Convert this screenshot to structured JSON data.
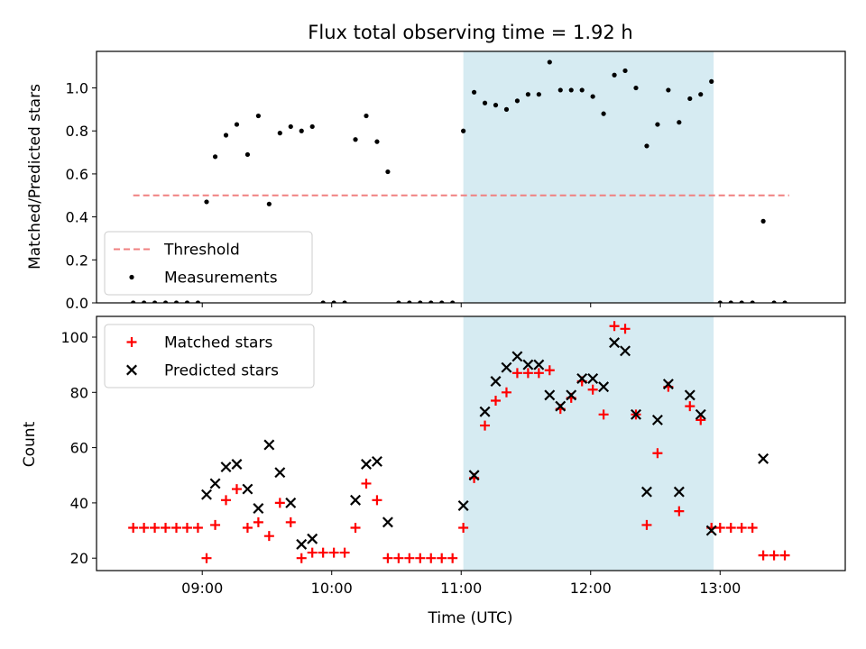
{
  "chart_data": [
    {
      "type": "scatter",
      "title": "Flux total observing time = 1.92 h",
      "xlabel": "",
      "ylabel": "Matched/Predicted stars",
      "xlim": [
        "08:11",
        "13:58"
      ],
      "ylim": [
        0,
        1.17
      ],
      "yticks": [
        0.0,
        0.2,
        0.4,
        0.6,
        0.8,
        1.0
      ],
      "ytick_labels": [
        "0.0",
        "0.2",
        "0.4",
        "0.6",
        "0.8",
        "1.0"
      ],
      "xticks": [
        "09:00",
        "10:00",
        "11:00",
        "12:00",
        "13:00"
      ],
      "grid": false,
      "legend": "lower-left",
      "shaded_span": {
        "start": "11:01",
        "end": "12:57",
        "color": "#add8e6"
      },
      "threshold": {
        "name": "Threshold",
        "y": 0.5,
        "x_start": "08:28",
        "x_end": "13:32",
        "color": "#f08080"
      },
      "series": [
        {
          "name": "Measurements",
          "color": "#000000",
          "marker": "dot",
          "points": [
            [
              "08:28",
              0
            ],
            [
              "08:33",
              0
            ],
            [
              "08:38",
              0
            ],
            [
              "08:43",
              0
            ],
            [
              "08:48",
              0
            ],
            [
              "08:53",
              0
            ],
            [
              "08:58",
              0
            ],
            [
              "09:02",
              0.47
            ],
            [
              "09:06",
              0.68
            ],
            [
              "09:11",
              0.78
            ],
            [
              "09:16",
              0.83
            ],
            [
              "09:21",
              0.69
            ],
            [
              "09:26",
              0.87
            ],
            [
              "09:31",
              0.46
            ],
            [
              "09:36",
              0.79
            ],
            [
              "09:41",
              0.82
            ],
            [
              "09:46",
              0.8
            ],
            [
              "09:51",
              0.82
            ],
            [
              "09:56",
              0
            ],
            [
              "10:01",
              0
            ],
            [
              "10:06",
              0
            ],
            [
              "10:11",
              0.76
            ],
            [
              "10:16",
              0.87
            ],
            [
              "10:21",
              0.75
            ],
            [
              "10:26",
              0.61
            ],
            [
              "10:31",
              0
            ],
            [
              "10:36",
              0
            ],
            [
              "10:41",
              0
            ],
            [
              "10:46",
              0
            ],
            [
              "10:51",
              0
            ],
            [
              "10:56",
              0
            ],
            [
              "11:01",
              0.8
            ],
            [
              "11:06",
              0.98
            ],
            [
              "11:11",
              0.93
            ],
            [
              "11:16",
              0.92
            ],
            [
              "11:21",
              0.9
            ],
            [
              "11:26",
              0.94
            ],
            [
              "11:31",
              0.97
            ],
            [
              "11:36",
              0.97
            ],
            [
              "11:41",
              1.12
            ],
            [
              "11:46",
              0.99
            ],
            [
              "11:51",
              0.99
            ],
            [
              "11:56",
              0.99
            ],
            [
              "12:01",
              0.96
            ],
            [
              "12:06",
              0.88
            ],
            [
              "12:11",
              1.06
            ],
            [
              "12:16",
              1.08
            ],
            [
              "12:21",
              1.0
            ],
            [
              "12:26",
              0.73
            ],
            [
              "12:31",
              0.83
            ],
            [
              "12:36",
              0.99
            ],
            [
              "12:41",
              0.84
            ],
            [
              "12:46",
              0.95
            ],
            [
              "12:51",
              0.97
            ],
            [
              "12:56",
              1.03
            ],
            [
              "13:00",
              0
            ],
            [
              "13:05",
              0
            ],
            [
              "13:10",
              0
            ],
            [
              "13:15",
              0
            ],
            [
              "13:20",
              0.38
            ],
            [
              "13:25",
              0
            ],
            [
              "13:30",
              0
            ]
          ]
        }
      ]
    },
    {
      "type": "scatter",
      "title": "",
      "xlabel": "Time (UTC)",
      "ylabel": "Count",
      "xlim": [
        "08:11",
        "13:58"
      ],
      "ylim": [
        15.5,
        107.5
      ],
      "yticks": [
        20,
        40,
        60,
        80,
        100
      ],
      "xticks": [
        "09:00",
        "10:00",
        "11:00",
        "12:00",
        "13:00"
      ],
      "xtick_labels": [
        "09:00",
        "10:00",
        "11:00",
        "12:00",
        "13:00"
      ],
      "grid": false,
      "legend": "upper-left",
      "shaded_span": {
        "start": "11:01",
        "end": "12:57",
        "color": "#add8e6"
      },
      "series": [
        {
          "name": "Matched stars",
          "color": "#ff0000",
          "marker": "plus",
          "points": [
            [
              "08:28",
              31
            ],
            [
              "08:33",
              31
            ],
            [
              "08:38",
              31
            ],
            [
              "08:43",
              31
            ],
            [
              "08:48",
              31
            ],
            [
              "08:53",
              31
            ],
            [
              "08:58",
              31
            ],
            [
              "09:02",
              20
            ],
            [
              "09:06",
              32
            ],
            [
              "09:11",
              41
            ],
            [
              "09:16",
              45
            ],
            [
              "09:21",
              31
            ],
            [
              "09:26",
              33
            ],
            [
              "09:31",
              28
            ],
            [
              "09:36",
              40
            ],
            [
              "09:41",
              33
            ],
            [
              "09:46",
              20
            ],
            [
              "09:51",
              22
            ],
            [
              "09:56",
              22
            ],
            [
              "10:01",
              22
            ],
            [
              "10:06",
              22
            ],
            [
              "10:11",
              31
            ],
            [
              "10:16",
              47
            ],
            [
              "10:21",
              41
            ],
            [
              "10:26",
              20
            ],
            [
              "10:31",
              20
            ],
            [
              "10:36",
              20
            ],
            [
              "10:41",
              20
            ],
            [
              "10:46",
              20
            ],
            [
              "10:51",
              20
            ],
            [
              "10:56",
              20
            ],
            [
              "11:01",
              31
            ],
            [
              "11:06",
              49
            ],
            [
              "11:11",
              68
            ],
            [
              "11:16",
              77
            ],
            [
              "11:21",
              80
            ],
            [
              "11:26",
              87
            ],
            [
              "11:31",
              87
            ],
            [
              "11:36",
              87
            ],
            [
              "11:41",
              88
            ],
            [
              "11:46",
              74
            ],
            [
              "11:51",
              78
            ],
            [
              "11:56",
              84
            ],
            [
              "12:01",
              81
            ],
            [
              "12:06",
              72
            ],
            [
              "12:11",
              104
            ],
            [
              "12:16",
              103
            ],
            [
              "12:21",
              72
            ],
            [
              "12:26",
              32
            ],
            [
              "12:31",
              58
            ],
            [
              "12:36",
              82
            ],
            [
              "12:41",
              37
            ],
            [
              "12:46",
              75
            ],
            [
              "12:51",
              70
            ],
            [
              "12:56",
              31
            ],
            [
              "13:00",
              31
            ],
            [
              "13:05",
              31
            ],
            [
              "13:10",
              31
            ],
            [
              "13:15",
              31
            ],
            [
              "13:20",
              21
            ],
            [
              "13:25",
              21
            ],
            [
              "13:30",
              21
            ]
          ]
        },
        {
          "name": "Predicted stars",
          "color": "#000000",
          "marker": "x",
          "points": [
            [
              "09:02",
              43
            ],
            [
              "09:06",
              47
            ],
            [
              "09:11",
              53
            ],
            [
              "09:16",
              54
            ],
            [
              "09:21",
              45
            ],
            [
              "09:26",
              38
            ],
            [
              "09:31",
              61
            ],
            [
              "09:36",
              51
            ],
            [
              "09:41",
              40
            ],
            [
              "09:46",
              25
            ],
            [
              "09:51",
              27
            ],
            [
              "10:11",
              41
            ],
            [
              "10:16",
              54
            ],
            [
              "10:21",
              55
            ],
            [
              "10:26",
              33
            ],
            [
              "11:01",
              39
            ],
            [
              "11:06",
              50
            ],
            [
              "11:11",
              73
            ],
            [
              "11:16",
              84
            ],
            [
              "11:21",
              89
            ],
            [
              "11:26",
              93
            ],
            [
              "11:31",
              90
            ],
            [
              "11:36",
              90
            ],
            [
              "11:41",
              79
            ],
            [
              "11:46",
              75
            ],
            [
              "11:51",
              79
            ],
            [
              "11:56",
              85
            ],
            [
              "12:01",
              85
            ],
            [
              "12:06",
              82
            ],
            [
              "12:11",
              98
            ],
            [
              "12:16",
              95
            ],
            [
              "12:21",
              72
            ],
            [
              "12:26",
              44
            ],
            [
              "12:31",
              70
            ],
            [
              "12:36",
              83
            ],
            [
              "12:41",
              44
            ],
            [
              "12:46",
              79
            ],
            [
              "12:51",
              72
            ],
            [
              "12:56",
              30
            ],
            [
              "13:20",
              56
            ]
          ]
        }
      ]
    }
  ]
}
